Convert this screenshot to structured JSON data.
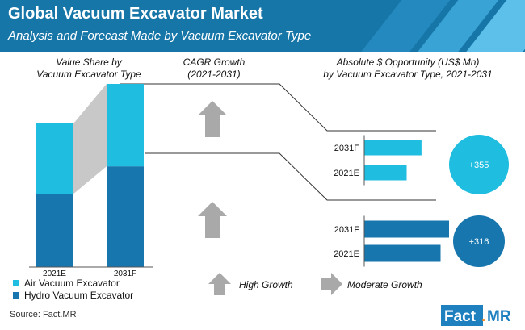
{
  "header": {
    "title": "Global Vacuum Excavator Market",
    "subtitle": "Analysis and Forecast Made by Vacuum Excavator Type"
  },
  "sections": {
    "value_share_title": [
      "Value Share by",
      "Vacuum Excavator Type"
    ],
    "cagr_title": [
      "CAGR Growth",
      "(2021-2031)"
    ],
    "opportunity_title": [
      "Absolute $ Opportunity (US$ Mn)",
      "by Vacuum Excavator Type, 2021-2031"
    ]
  },
  "colors": {
    "air": "#1fbde0",
    "hydro": "#1676ad",
    "header": "#1776a8",
    "arrow": "#a9a9a9",
    "connector": "#c8c8c8"
  },
  "legend": {
    "air": "Air Vacuum Excavator",
    "hydro": "Hydro Vacuum Excavator"
  },
  "growth_legend": {
    "high": "High Growth",
    "moderate": "Moderate Growth"
  },
  "source": "Source: Fact.MR",
  "logo": {
    "text_main": "Fact",
    "text_dot": ".",
    "text_end": "MR"
  },
  "chart_data": [
    {
      "type": "bar",
      "stacked": true,
      "categories": [
        "2021E",
        "2031F"
      ],
      "series": [
        {
          "name": "Hydro Vacuum Excavator",
          "values": [
            51,
            55
          ]
        },
        {
          "name": "Air Vacuum Excavator",
          "values": [
            49,
            45
          ]
        }
      ],
      "ylim": [
        0,
        100
      ],
      "cagr": {
        "Air Vacuum Excavator": "High Growth",
        "Hydro Vacuum Excavator": "High Growth"
      }
    },
    {
      "type": "bar",
      "orientation": "horizontal",
      "series_name": "Air Vacuum Excavator",
      "categories": [
        "2031F",
        "2021E"
      ],
      "values": [
        540,
        400
      ],
      "absolute_opportunity": "+355"
    },
    {
      "type": "bar",
      "orientation": "horizontal",
      "series_name": "Hydro Vacuum Excavator",
      "categories": [
        "2031F",
        "2021E"
      ],
      "values": [
        800,
        720
      ],
      "absolute_opportunity": "+316"
    }
  ]
}
